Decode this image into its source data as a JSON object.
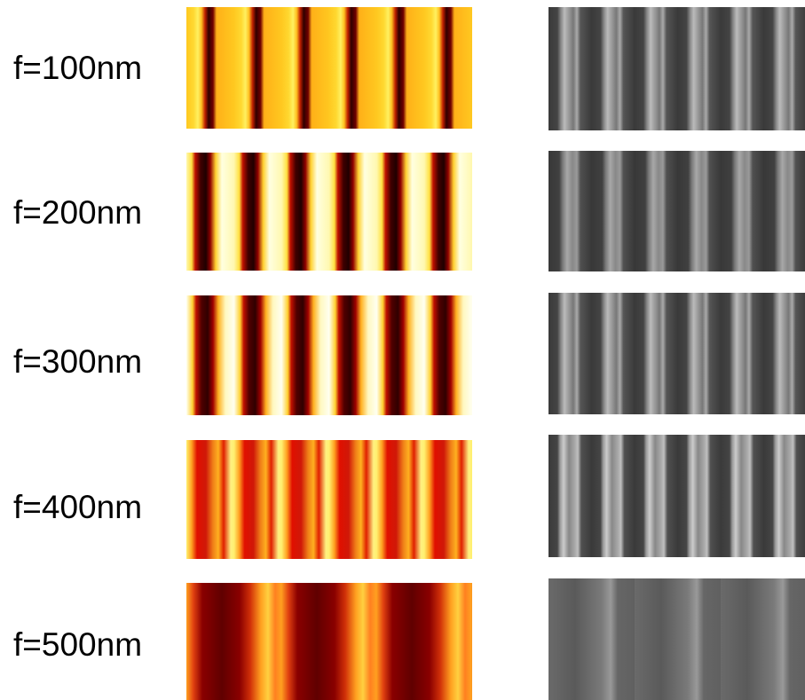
{
  "rows": [
    {
      "label": "f=100nm"
    },
    {
      "label": "f=200nm"
    },
    {
      "label": "f=300nm"
    },
    {
      "label": "f=400nm"
    },
    {
      "label": "f=500nm"
    }
  ]
}
